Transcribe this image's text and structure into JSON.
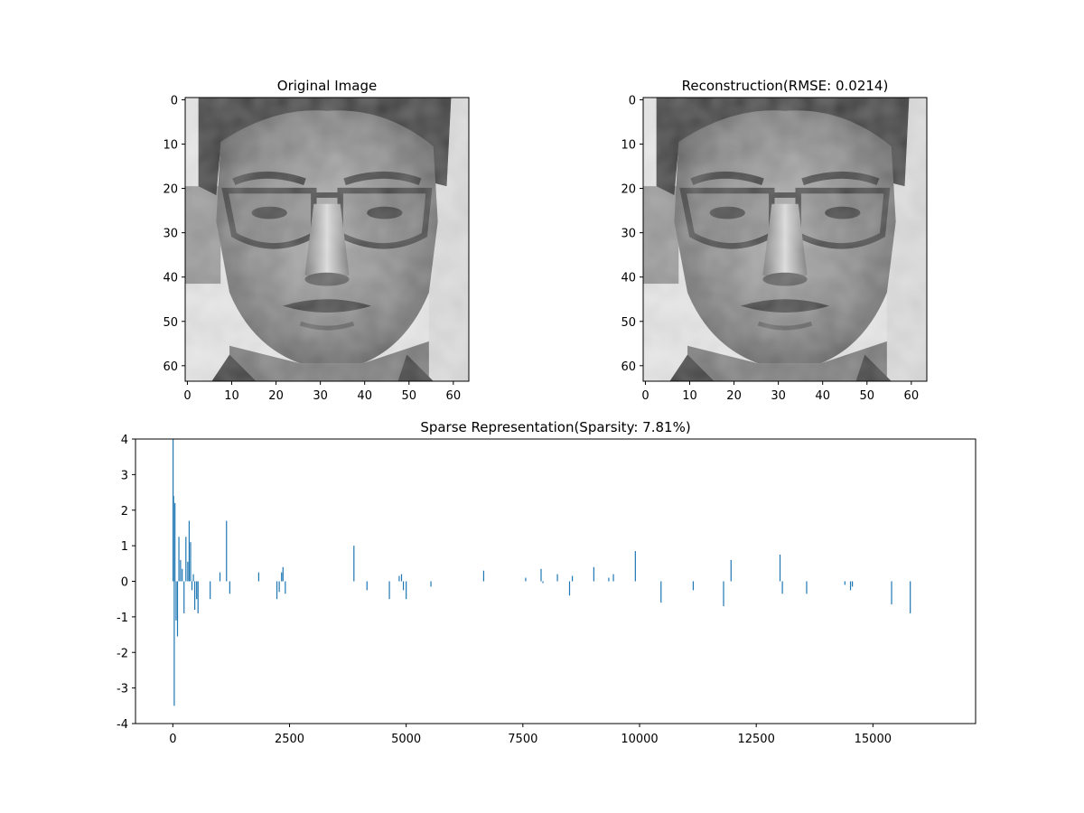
{
  "chart_data": [
    {
      "type": "image",
      "title": "Original Image",
      "xlim": [
        0,
        63
      ],
      "ylim": [
        63,
        0
      ],
      "xticks": [
        0,
        10,
        20,
        30,
        40,
        50,
        60
      ],
      "yticks": [
        0,
        10,
        20,
        30,
        40,
        50,
        60
      ],
      "colormap": "gray",
      "content": "grayscale face photograph, 64x64 pixels"
    },
    {
      "type": "image",
      "title": "Reconstruction(RMSE: 0.0214)",
      "xlim": [
        0,
        63
      ],
      "ylim": [
        63,
        0
      ],
      "xticks": [
        0,
        10,
        20,
        30,
        40,
        50,
        60
      ],
      "yticks": [
        0,
        10,
        20,
        30,
        40,
        50,
        60
      ],
      "colormap": "gray",
      "content": "grayscale face photograph reconstruction, 64x64 pixels"
    },
    {
      "type": "bar",
      "title": "Sparse Representation(Sparsity: 7.81%)",
      "xlabel": "",
      "ylabel": "",
      "xlim": [
        -800,
        17200
      ],
      "ylim": [
        -4,
        4
      ],
      "xticks": [
        0,
        2500,
        5000,
        7500,
        10000,
        12500,
        15000
      ],
      "yticks": [
        -4,
        -3,
        -2,
        -1,
        0,
        1,
        2,
        3,
        4
      ],
      "bar_color": "#1f77b4",
      "x": [
        5,
        15,
        30,
        45,
        70,
        100,
        130,
        165,
        200,
        240,
        280,
        320,
        350,
        380,
        410,
        440,
        470,
        510,
        540,
        800,
        1010,
        1150,
        1220,
        1840,
        2230,
        2280,
        2330,
        2360,
        2410,
        3880,
        4160,
        4640,
        4850,
        4900,
        4940,
        5000,
        5530,
        6660,
        7560,
        7890,
        7930,
        8240,
        8500,
        8560,
        9020,
        9340,
        9440,
        9910,
        10460,
        11150,
        11800,
        11960,
        13010,
        13060,
        13580,
        14400,
        14520,
        14560,
        15400,
        15800
      ],
      "values": [
        4.0,
        2.4,
        -3.5,
        2.2,
        -1.1,
        -1.55,
        1.25,
        0.6,
        0.35,
        -0.9,
        1.25,
        0.55,
        1.7,
        1.1,
        -0.25,
        0.2,
        -0.8,
        -0.5,
        -0.9,
        -0.5,
        0.25,
        1.7,
        -0.35,
        0.25,
        -0.5,
        -0.3,
        0.25,
        0.4,
        -0.35,
        1.0,
        -0.25,
        -0.5,
        0.15,
        0.2,
        -0.25,
        -0.5,
        -0.15,
        0.3,
        0.1,
        0.35,
        -0.05,
        0.2,
        -0.4,
        0.15,
        0.4,
        0.1,
        0.2,
        0.85,
        -0.6,
        -0.25,
        -0.7,
        0.6,
        0.75,
        -0.35,
        -0.35,
        -0.1,
        -0.25,
        -0.15,
        -0.65,
        -0.9
      ]
    }
  ]
}
